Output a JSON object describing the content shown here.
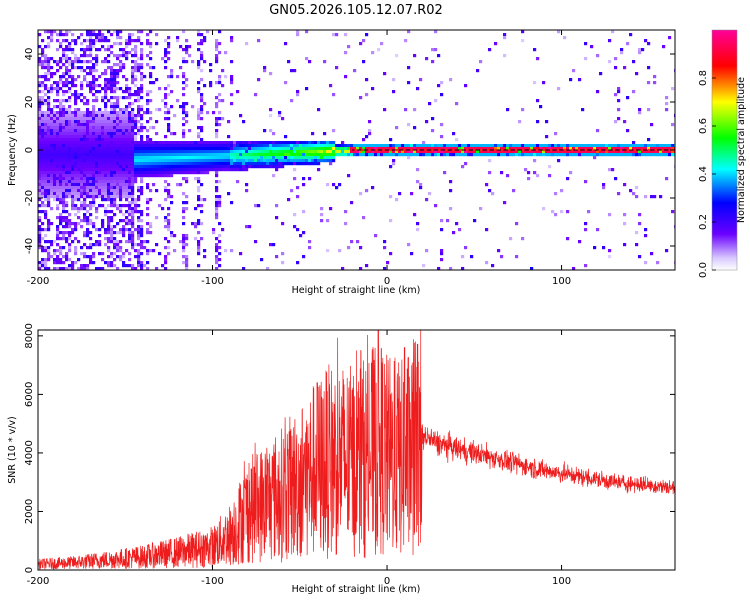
{
  "figure_title": "GN05.2026.105.12.07.R02",
  "chart_data": [
    {
      "type": "heatmap",
      "title": "GN05.2026.105.12.07.R02",
      "xlabel": "Height of straight line (km)",
      "ylabel": "Frequency (Hz)",
      "xlim": [
        -200,
        165
      ],
      "ylim": [
        -50,
        50
      ],
      "x_ticks": [
        -200,
        -100,
        0,
        100
      ],
      "y_ticks": [
        -40,
        -20,
        0,
        20,
        40
      ],
      "colorbar": {
        "label": "Normalized spectral amplitude",
        "range": [
          0,
          1
        ],
        "ticks": [
          "0.0",
          "0.2",
          "0.4",
          "0.6",
          "0.8"
        ],
        "colors": [
          "#ffffff",
          "#5500ff",
          "#0000ff",
          "#00ffff",
          "#00ff00",
          "#ffff00",
          "#ff0000",
          "#ff00aa"
        ]
      },
      "features": {
        "noise_region_x": [
          -200,
          -90
        ],
        "signal_onset_x": -145,
        "signal_peak_line_x": [
          -20,
          165
        ],
        "signal_frequency_hz": 0
      }
    },
    {
      "type": "line",
      "xlabel": "Height of straight line (km)",
      "ylabel": "SNR (10 * v/v)",
      "xlim": [
        -200,
        165
      ],
      "ylim": [
        0,
        8200
      ],
      "x_ticks": [
        -200,
        -100,
        0,
        100
      ],
      "y_ticks": [
        0,
        2000,
        4000,
        6000,
        8000
      ],
      "series": [
        {
          "name": "SNR",
          "color": "#ee1c1c",
          "x": [
            -200,
            -180,
            -160,
            -140,
            -120,
            -100,
            -90,
            -80,
            -70,
            -60,
            -50,
            -40,
            -30,
            -20,
            -10,
            -5,
            0,
            10,
            20,
            30,
            50,
            70,
            90,
            110,
            130,
            150,
            165
          ],
          "values": [
            200,
            250,
            350,
            450,
            600,
            800,
            1200,
            2000,
            2300,
            2600,
            3000,
            3500,
            3800,
            3700,
            3900,
            4300,
            3900,
            3800,
            4600,
            4300,
            4000,
            3700,
            3400,
            3200,
            3000,
            2900,
            2800
          ],
          "peaks": [
            {
              "x": -15,
              "y": 7500
            },
            {
              "x": -5,
              "y": 8200
            },
            {
              "x": 10,
              "y": 7600
            },
            {
              "x": -40,
              "y": 6400
            }
          ]
        }
      ]
    }
  ]
}
